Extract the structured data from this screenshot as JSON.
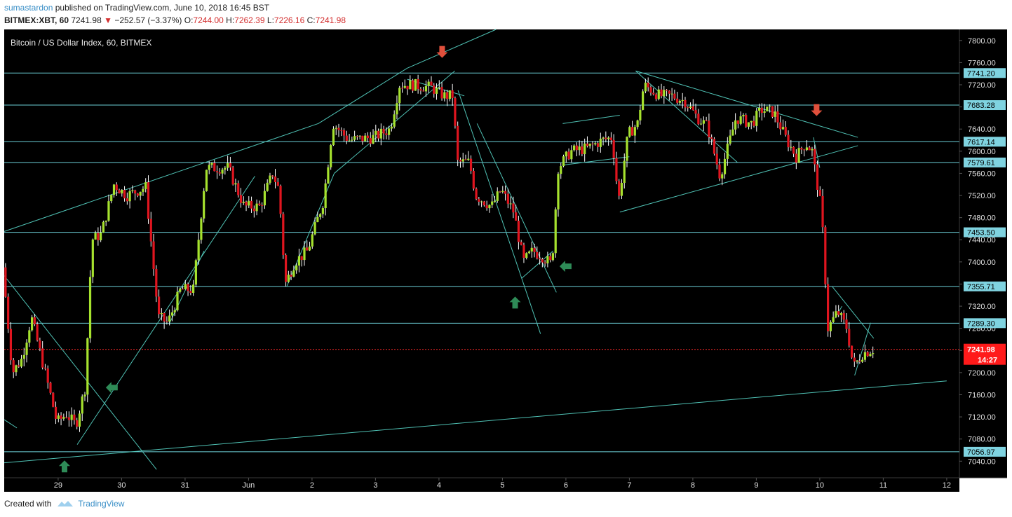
{
  "header": {
    "author": "sumastardon",
    "published_text": "published on TradingView.com, June 10, 2018 16:45 BST",
    "symbol": "BITMEX:XBT, 60",
    "last": "7241.98",
    "change": "−252.57 (−3.37%)",
    "open_label": "O:",
    "open": "7244.00",
    "high_label": "H:",
    "high": "7262.39",
    "low_label": "L:",
    "low": "7226.16",
    "close_label": "C:",
    "close": "7241.98"
  },
  "chart_title": "Bitcoin / US Dollar Index, 60, BITMEX",
  "footer": {
    "created_with": "Created with",
    "brand": "TradingView"
  },
  "colors": {
    "background": "#000000",
    "up_candle": "#a6e22e",
    "down_candle": "#e0151f",
    "wick": "#ffffff",
    "trendline": "#4fc1b4",
    "hline": "#6ccfd8",
    "price_line": "#ff2a2a",
    "up_arrow": "#2e8b57",
    "down_arrow": "#e0503c",
    "axis_text": "#e0e0e0"
  },
  "chart_data": {
    "type": "candlestick",
    "symbol": "BITMEX:XBT",
    "interval": "60",
    "ylim": [
      7010,
      7820
    ],
    "y_ticks": [
      7040,
      7080,
      7120,
      7160,
      7200,
      7240,
      7280,
      7320,
      7360,
      7400,
      7440,
      7480,
      7520,
      7560,
      7600,
      7640,
      7680,
      7720,
      7760,
      7800
    ],
    "x_ticks": [
      {
        "label": "29",
        "day": 29
      },
      {
        "label": "30",
        "day": 30
      },
      {
        "label": "31",
        "day": 31
      },
      {
        "label": "Jun",
        "day": 32
      },
      {
        "label": "2",
        "day": 33
      },
      {
        "label": "3",
        "day": 34
      },
      {
        "label": "4",
        "day": 35
      },
      {
        "label": "5",
        "day": 36
      },
      {
        "label": "6",
        "day": 37
      },
      {
        "label": "7",
        "day": 38
      },
      {
        "label": "8",
        "day": 39
      },
      {
        "label": "9",
        "day": 40
      },
      {
        "label": "10",
        "day": 41
      },
      {
        "label": "11",
        "day": 42
      },
      {
        "label": "12",
        "day": 43
      }
    ],
    "x_range": [
      28.15,
      43.2
    ],
    "horizontal_levels": [
      "7741.20",
      "7683.28",
      "7617.14",
      "7579.61",
      "7453.50",
      "7355.71",
      "7289.30",
      "7056.97"
    ],
    "current_price": "7241.98",
    "countdown": "14:27",
    "price_path": [
      [
        28.15,
        7390
      ],
      [
        28.3,
        7200
      ],
      [
        28.45,
        7225
      ],
      [
        28.6,
        7300
      ],
      [
        28.75,
        7230
      ],
      [
        28.9,
        7160
      ],
      [
        29.0,
        7110
      ],
      [
        29.15,
        7125
      ],
      [
        29.3,
        7105
      ],
      [
        29.45,
        7175
      ],
      [
        29.55,
        7440
      ],
      [
        29.7,
        7450
      ],
      [
        29.9,
        7540
      ],
      [
        30.1,
        7520
      ],
      [
        30.4,
        7535
      ],
      [
        30.6,
        7300
      ],
      [
        30.75,
        7290
      ],
      [
        30.95,
        7350
      ],
      [
        31.15,
        7350
      ],
      [
        31.35,
        7570
      ],
      [
        31.7,
        7570
      ],
      [
        31.95,
        7500
      ],
      [
        32.2,
        7500
      ],
      [
        32.4,
        7560
      ],
      [
        32.5,
        7530
      ],
      [
        32.6,
        7360
      ],
      [
        32.75,
        7400
      ],
      [
        32.95,
        7420
      ],
      [
        33.2,
        7510
      ],
      [
        33.35,
        7650
      ],
      [
        33.6,
        7620
      ],
      [
        34.0,
        7625
      ],
      [
        34.25,
        7640
      ],
      [
        34.4,
        7720
      ],
      [
        34.6,
        7720
      ],
      [
        34.9,
        7715
      ],
      [
        35.1,
        7700
      ],
      [
        35.25,
        7700
      ],
      [
        35.3,
        7580
      ],
      [
        35.5,
        7580
      ],
      [
        35.6,
        7520
      ],
      [
        35.85,
        7500
      ],
      [
        36.0,
        7530
      ],
      [
        36.2,
        7490
      ],
      [
        36.35,
        7400
      ],
      [
        36.5,
        7420
      ],
      [
        36.65,
        7410
      ],
      [
        36.8,
        7395
      ],
      [
        36.9,
        7570
      ],
      [
        37.1,
        7600
      ],
      [
        37.35,
        7605
      ],
      [
        37.6,
        7620
      ],
      [
        37.75,
        7625
      ],
      [
        37.85,
        7510
      ],
      [
        38.0,
        7630
      ],
      [
        38.15,
        7650
      ],
      [
        38.25,
        7720
      ],
      [
        38.5,
        7700
      ],
      [
        38.7,
        7700
      ],
      [
        38.9,
        7690
      ],
      [
        39.1,
        7660
      ],
      [
        39.25,
        7645
      ],
      [
        39.45,
        7555
      ],
      [
        39.7,
        7660
      ],
      [
        39.95,
        7650
      ],
      [
        40.1,
        7675
      ],
      [
        40.3,
        7670
      ],
      [
        40.5,
        7620
      ],
      [
        40.65,
        7590
      ],
      [
        40.8,
        7615
      ],
      [
        40.9,
        7600
      ],
      [
        41.05,
        7490
      ],
      [
        41.15,
        7280
      ],
      [
        41.3,
        7310
      ],
      [
        41.45,
        7280
      ],
      [
        41.55,
        7210
      ],
      [
        41.7,
        7235
      ],
      [
        41.85,
        7242
      ]
    ],
    "trendlines": [
      [
        [
          28.15,
          7455
        ],
        [
          33.1,
          7650
        ]
      ],
      [
        [
          33.1,
          7650
        ],
        [
          34.5,
          7750
        ]
      ],
      [
        [
          34.5,
          7750
        ],
        [
          35.9,
          7820
        ]
      ],
      [
        [
          28.15,
          7037
        ],
        [
          43.0,
          7185
        ]
      ],
      [
        [
          28.15,
          7375
        ],
        [
          30.55,
          7025
        ]
      ],
      [
        [
          28.15,
          7115
        ],
        [
          28.35,
          7100
        ]
      ],
      [
        [
          29.3,
          7070
        ],
        [
          32.1,
          7555
        ]
      ],
      [
        [
          30.75,
          7288
        ],
        [
          31.3,
          7420
        ]
      ],
      [
        [
          32.6,
          7355
        ],
        [
          33.35,
          7560
        ]
      ],
      [
        [
          33.35,
          7560
        ],
        [
          35.25,
          7745
        ]
      ],
      [
        [
          34.5,
          7730
        ],
        [
          35.4,
          7700
        ]
      ],
      [
        [
          35.3,
          7710
        ],
        [
          36.6,
          7270
        ]
      ],
      [
        [
          35.6,
          7650
        ],
        [
          36.85,
          7345
        ]
      ],
      [
        [
          36.3,
          7370
        ],
        [
          36.8,
          7420
        ]
      ],
      [
        [
          36.95,
          7575
        ],
        [
          38.0,
          7590
        ]
      ],
      [
        [
          36.95,
          7650
        ],
        [
          37.85,
          7665
        ]
      ],
      [
        [
          37.85,
          7490
        ],
        [
          41.6,
          7610
        ]
      ],
      [
        [
          38.1,
          7745
        ],
        [
          41.6,
          7625
        ]
      ],
      [
        [
          38.1,
          7745
        ],
        [
          39.7,
          7580
        ]
      ],
      [
        [
          40.9,
          7625
        ],
        [
          41.0,
          7570
        ]
      ],
      [
        [
          41.2,
          7355
        ],
        [
          41.85,
          7262
        ]
      ],
      [
        [
          41.25,
          7300
        ],
        [
          41.35,
          7320
        ]
      ],
      [
        [
          41.55,
          7195
        ],
        [
          41.8,
          7290
        ]
      ]
    ],
    "arrows": [
      {
        "dir": "up",
        "x": 29.1,
        "y": 7030
      },
      {
        "dir": "left",
        "x": 29.85,
        "y": 7173
      },
      {
        "dir": "down",
        "x": 35.05,
        "y": 7780
      },
      {
        "dir": "up",
        "x": 36.2,
        "y": 7326
      },
      {
        "dir": "left",
        "x": 37.0,
        "y": 7392
      },
      {
        "dir": "down",
        "x": 40.95,
        "y": 7675
      }
    ]
  }
}
